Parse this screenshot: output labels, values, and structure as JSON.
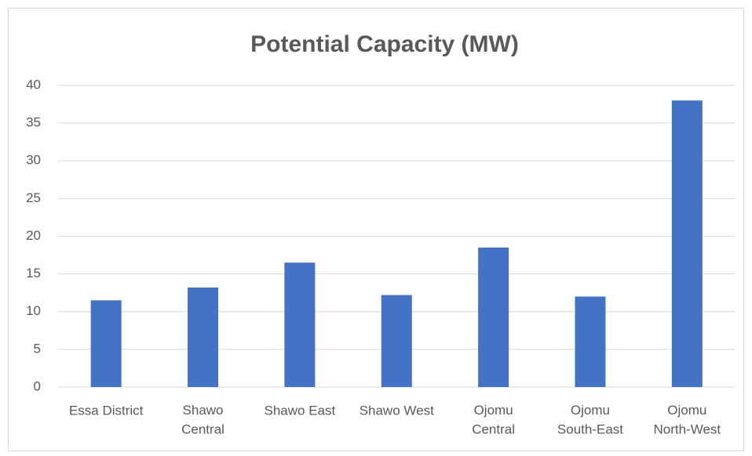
{
  "chart_data": {
    "type": "bar",
    "title": "Potential Capacity (MW)",
    "categories": [
      "Essa District",
      "Shawo\nCentral",
      "Shawo East",
      "Shawo West",
      "Ojomu\nCentral",
      "Ojomu\nSouth-East",
      "Ojomu\nNorth-West"
    ],
    "values": [
      11.5,
      13.2,
      16.5,
      12.2,
      18.5,
      12,
      38
    ],
    "color": "#4472c4",
    "ylim": [
      0,
      40
    ],
    "yticks": [
      0,
      5,
      10,
      15,
      20,
      25,
      30,
      35,
      40
    ],
    "grid": true
  }
}
